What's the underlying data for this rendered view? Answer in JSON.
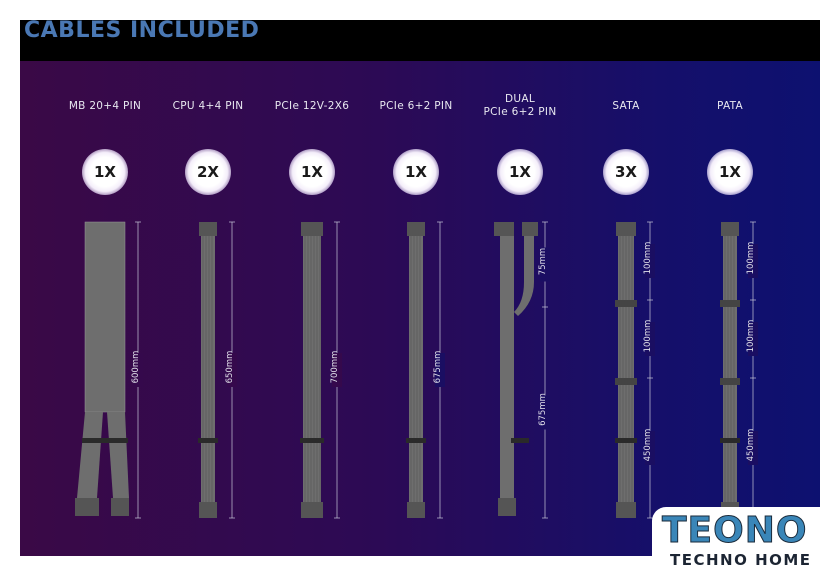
{
  "title": "CABLES INCLUDED",
  "cables": [
    {
      "label": "MB 20+4 PIN",
      "qty": "1X",
      "lengths": [
        "600mm"
      ]
    },
    {
      "label": "CPU 4+4 PIN",
      "qty": "2X",
      "lengths": [
        "650mm"
      ]
    },
    {
      "label": "PCIe 12V-2X6",
      "qty": "1X",
      "lengths": [
        "700mm"
      ]
    },
    {
      "label": "PCIe 6+2 PIN",
      "qty": "1X",
      "lengths": [
        "675mm"
      ]
    },
    {
      "label": "DUAL\nPCIe 6+2 PIN",
      "qty": "1X",
      "lengths": [
        "75mm",
        "675mm"
      ]
    },
    {
      "label": "SATA",
      "qty": "3X",
      "lengths": [
        "100mm",
        "100mm",
        "450mm"
      ]
    },
    {
      "label": "PATA",
      "qty": "1X",
      "lengths": [
        "100mm",
        "100mm",
        "450mm"
      ]
    }
  ],
  "logo": {
    "main": "TEONO",
    "sub": "TECHNO HOME"
  },
  "colors": {
    "title": "#4a78b4",
    "panel_left": "#3a0946",
    "panel_right": "#0d1170",
    "cable": "#7a7a7a"
  }
}
